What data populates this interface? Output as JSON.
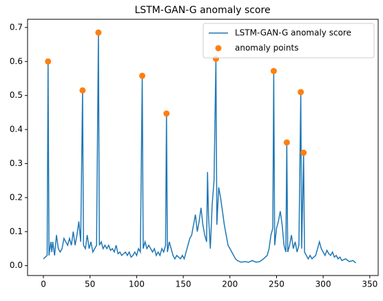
{
  "chart_data": {
    "type": "line",
    "title": "LSTM-GAN-G anomaly score",
    "xlim": [
      -17,
      359
    ],
    "xticks": [
      0,
      50,
      100,
      150,
      200,
      250,
      300,
      350
    ],
    "ylim": [
      -0.029,
      0.724
    ],
    "yticks": [
      {
        "value": 0,
        "label": "0.0"
      },
      0.1,
      0.2,
      0.3,
      0.4,
      0.5,
      0.6,
      0.7
    ],
    "legend": "upper right",
    "series": [
      {
        "name": "LSTM-GAN-G anomaly score",
        "type": "line",
        "color": "#1f77b4",
        "x": [
          0,
          2,
          4,
          5,
          6,
          8,
          9,
          10,
          12,
          14,
          16,
          18,
          20,
          22,
          24,
          26,
          28,
          30,
          32,
          34,
          36,
          38,
          40,
          42,
          43,
          45,
          47,
          49,
          51,
          53,
          55,
          57,
          59,
          60,
          62,
          64,
          66,
          68,
          70,
          72,
          74,
          76,
          78,
          80,
          82,
          84,
          86,
          88,
          90,
          92,
          94,
          96,
          98,
          100,
          102,
          104,
          106,
          107,
          109,
          111,
          113,
          115,
          117,
          119,
          121,
          123,
          125,
          127,
          129,
          131,
          132,
          133,
          135,
          137,
          139,
          141,
          143,
          145,
          147,
          149,
          151,
          153,
          155,
          157,
          159,
          161,
          163,
          165,
          167,
          169,
          171,
          173,
          175,
          176,
          177,
          179,
          181,
          183,
          185,
          186,
          188,
          190,
          192,
          194,
          196,
          198,
          200,
          202,
          204,
          206,
          208,
          212,
          216,
          220,
          224,
          228,
          232,
          236,
          240,
          242,
          244,
          246,
          247,
          248,
          250,
          252,
          254,
          256,
          258,
          260,
          261,
          262,
          264,
          266,
          268,
          270,
          272,
          274,
          276,
          277,
          279,
          280,
          282,
          284,
          286,
          288,
          290,
          292,
          294,
          296,
          298,
          300,
          302,
          304,
          306,
          308,
          310,
          312,
          314,
          316,
          318,
          320,
          324,
          328,
          332,
          335
        ],
        "values": [
          0.02,
          0.025,
          0.03,
          0.6,
          0.03,
          0.07,
          0.04,
          0.07,
          0.03,
          0.09,
          0.05,
          0.04,
          0.05,
          0.08,
          0.07,
          0.06,
          0.08,
          0.06,
          0.1,
          0.06,
          0.09,
          0.13,
          0.07,
          0.515,
          0.06,
          0.05,
          0.09,
          0.05,
          0.07,
          0.04,
          0.05,
          0.06,
          0.685,
          0.06,
          0.07,
          0.05,
          0.06,
          0.05,
          0.06,
          0.045,
          0.05,
          0.04,
          0.06,
          0.035,
          0.04,
          0.03,
          0.035,
          0.04,
          0.03,
          0.04,
          0.025,
          0.03,
          0.04,
          0.03,
          0.05,
          0.04,
          0.558,
          0.05,
          0.07,
          0.05,
          0.06,
          0.05,
          0.04,
          0.05,
          0.03,
          0.04,
          0.03,
          0.05,
          0.04,
          0.06,
          0.447,
          0.04,
          0.07,
          0.05,
          0.03,
          0.02,
          0.03,
          0.025,
          0.02,
          0.03,
          0.02,
          0.04,
          0.06,
          0.08,
          0.09,
          0.12,
          0.15,
          0.1,
          0.13,
          0.17,
          0.12,
          0.09,
          0.07,
          0.275,
          0.15,
          0.05,
          0.18,
          0.25,
          0.608,
          0.12,
          0.23,
          0.2,
          0.16,
          0.12,
          0.09,
          0.06,
          0.05,
          0.04,
          0.03,
          0.02,
          0.015,
          0.01,
          0.012,
          0.01,
          0.015,
          0.01,
          0.012,
          0.02,
          0.03,
          0.05,
          0.09,
          0.11,
          0.572,
          0.06,
          0.11,
          0.13,
          0.16,
          0.12,
          0.06,
          0.04,
          0.362,
          0.04,
          0.06,
          0.09,
          0.05,
          0.07,
          0.04,
          0.06,
          0.51,
          0.05,
          0.332,
          0.04,
          0.03,
          0.02,
          0.03,
          0.02,
          0.025,
          0.03,
          0.05,
          0.07,
          0.05,
          0.04,
          0.03,
          0.045,
          0.035,
          0.03,
          0.04,
          0.025,
          0.03,
          0.02,
          0.025,
          0.015,
          0.02,
          0.012,
          0.015,
          0.008
        ]
      },
      {
        "name": "anomaly points",
        "type": "scatter",
        "color": "#ff7f0e",
        "x": [
          5,
          42,
          59,
          106,
          132,
          185,
          247,
          261,
          276,
          279
        ],
        "values": [
          0.6,
          0.515,
          0.685,
          0.558,
          0.447,
          0.608,
          0.572,
          0.362,
          0.51,
          0.332
        ]
      }
    ]
  }
}
